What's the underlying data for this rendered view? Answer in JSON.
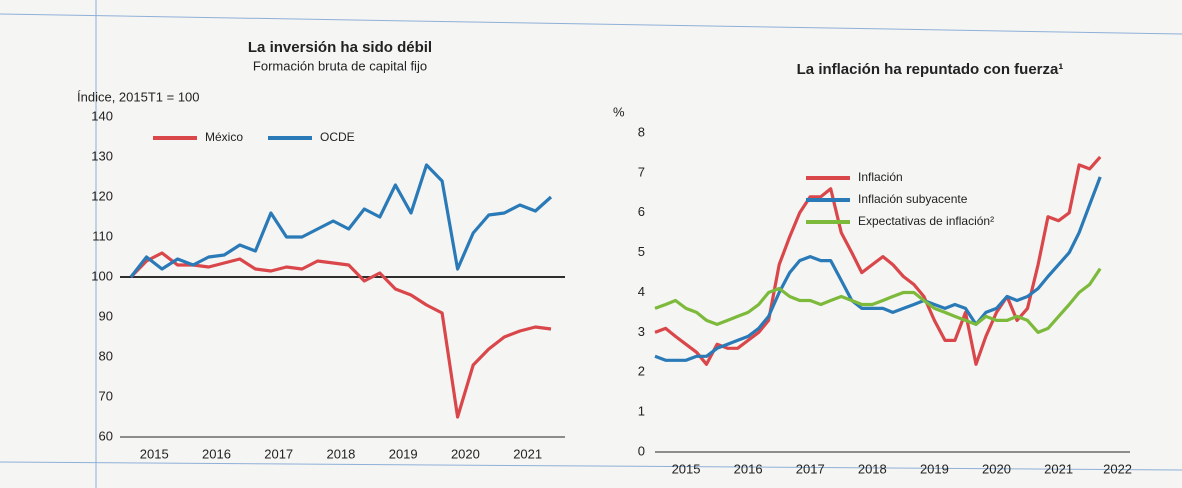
{
  "chart_data": [
    {
      "type": "line",
      "title": "La inversión ha sido débil",
      "subtitle": "Formación bruta de capital fijo",
      "y_label": "Índice, 2015T1 = 100",
      "x": [
        2015.125,
        2015.375,
        2015.625,
        2015.875,
        2016.125,
        2016.375,
        2016.625,
        2016.875,
        2017.125,
        2017.375,
        2017.625,
        2017.875,
        2018.125,
        2018.375,
        2018.625,
        2018.875,
        2019.125,
        2019.375,
        2019.625,
        2019.875,
        2020.125,
        2020.375,
        2020.625,
        2020.875,
        2021.125,
        2021.375,
        2021.625,
        2021.875
      ],
      "series": [
        {
          "name": "México",
          "color": "#d9474b",
          "values": [
            100,
            104,
            106,
            103,
            103,
            102.5,
            103.5,
            104.5,
            102,
            101.5,
            102.5,
            102,
            104,
            103.5,
            103,
            99,
            101,
            97,
            95.5,
            93,
            91,
            65,
            78,
            82,
            85,
            86.5,
            87.5,
            87
          ]
        },
        {
          "name": "OCDE",
          "color": "#2a7ab8",
          "values": [
            100,
            105,
            102,
            104.5,
            103,
            105,
            105.5,
            108,
            106.5,
            116,
            110,
            110,
            112,
            114,
            112,
            117,
            115,
            123,
            116,
            128,
            124,
            102,
            111,
            115.5,
            116,
            118,
            116.5,
            120
          ]
        }
      ],
      "hline": 100,
      "xlim": [
        2014.95,
        2022.1
      ],
      "xticks": [
        {
          "value": 2015.5,
          "label": "2015"
        },
        {
          "value": 2016.5,
          "label": "2016"
        },
        {
          "value": 2017.5,
          "label": "2017"
        },
        {
          "value": 2018.5,
          "label": "2018"
        },
        {
          "value": 2019.5,
          "label": "2019"
        },
        {
          "value": 2020.5,
          "label": "2020"
        },
        {
          "value": 2021.5,
          "label": "2021"
        }
      ],
      "ylim": [
        60,
        140
      ],
      "yticks": [
        60,
        70,
        80,
        90,
        100,
        110,
        120,
        130,
        140
      ],
      "legend": "top",
      "grid": false
    },
    {
      "type": "line",
      "title": "La inflación ha repuntado con fuerza¹",
      "y_label": "%",
      "x": [
        2015,
        2015.17,
        2015.33,
        2015.5,
        2015.67,
        2015.83,
        2016,
        2016.17,
        2016.33,
        2016.5,
        2016.67,
        2016.83,
        2017,
        2017.17,
        2017.33,
        2017.5,
        2017.67,
        2017.83,
        2018,
        2018.17,
        2018.33,
        2018.5,
        2018.67,
        2018.83,
        2019,
        2019.17,
        2019.33,
        2019.5,
        2019.67,
        2019.83,
        2020,
        2020.17,
        2020.33,
        2020.5,
        2020.67,
        2020.83,
        2021,
        2021.17,
        2021.33,
        2021.5,
        2021.67,
        2021.83,
        2022,
        2022.17
      ],
      "series": [
        {
          "name": "Inflación",
          "color": "#d9474b",
          "values": [
            3.0,
            3.1,
            2.9,
            2.7,
            2.5,
            2.2,
            2.7,
            2.6,
            2.6,
            2.8,
            3.0,
            3.3,
            4.7,
            5.4,
            6.0,
            6.4,
            6.4,
            6.6,
            5.5,
            5.0,
            4.5,
            4.7,
            4.9,
            4.7,
            4.4,
            4.2,
            3.9,
            3.3,
            2.8,
            2.8,
            3.5,
            2.2,
            2.9,
            3.5,
            3.9,
            3.3,
            3.6,
            4.7,
            5.9,
            5.8,
            6.0,
            7.2,
            7.1,
            7.4
          ]
        },
        {
          "name": "Inflación subyacente",
          "color": "#2a7ab8",
          "values": [
            2.4,
            2.3,
            2.3,
            2.3,
            2.4,
            2.4,
            2.6,
            2.7,
            2.8,
            2.9,
            3.1,
            3.4,
            4.0,
            4.5,
            4.8,
            4.9,
            4.8,
            4.8,
            4.3,
            3.8,
            3.6,
            3.6,
            3.6,
            3.5,
            3.6,
            3.7,
            3.8,
            3.7,
            3.6,
            3.7,
            3.6,
            3.2,
            3.5,
            3.6,
            3.9,
            3.8,
            3.9,
            4.1,
            4.4,
            4.7,
            5.0,
            5.5,
            6.2,
            6.9
          ]
        },
        {
          "name": "Expectativas de inflación²",
          "color": "#7dba3c",
          "values": [
            3.6,
            3.7,
            3.8,
            3.6,
            3.5,
            3.3,
            3.2,
            3.3,
            3.4,
            3.5,
            3.7,
            4.0,
            4.1,
            3.9,
            3.8,
            3.8,
            3.7,
            3.8,
            3.9,
            3.8,
            3.7,
            3.7,
            3.8,
            3.9,
            4.0,
            4.0,
            3.8,
            3.6,
            3.5,
            3.4,
            3.3,
            3.2,
            3.4,
            3.3,
            3.3,
            3.4,
            3.3,
            3.0,
            3.1,
            3.4,
            3.7,
            4.0,
            4.2,
            4.6
          ]
        }
      ],
      "xlim": [
        2015,
        2022.65
      ],
      "xticks": [
        {
          "value": 2015.5,
          "label": "2015"
        },
        {
          "value": 2016.5,
          "label": "2016"
        },
        {
          "value": 2017.5,
          "label": "2017"
        },
        {
          "value": 2018.5,
          "label": "2018"
        },
        {
          "value": 2019.5,
          "label": "2019"
        },
        {
          "value": 2020.5,
          "label": "2020"
        },
        {
          "value": 2021.5,
          "label": "2021"
        },
        {
          "value": 2022.45,
          "label": "2022"
        }
      ],
      "ylim": [
        0,
        8
      ],
      "yticks": [
        0,
        1,
        2,
        3,
        4,
        5,
        6,
        7,
        8
      ],
      "legend": "upper right",
      "grid": false
    }
  ]
}
